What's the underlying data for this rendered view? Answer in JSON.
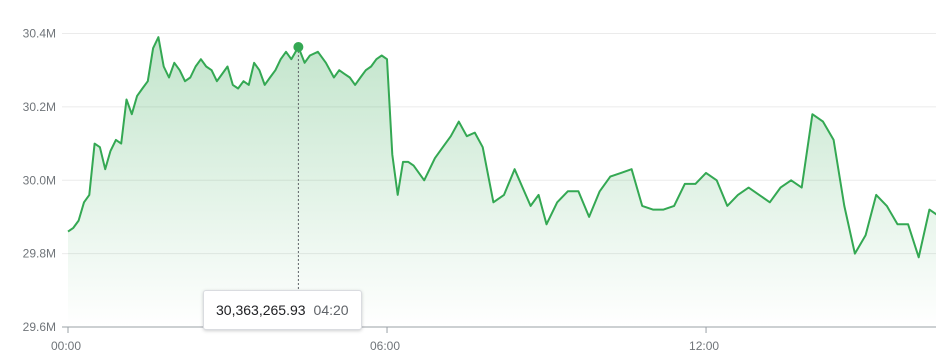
{
  "chart_data": {
    "type": "area",
    "title": "",
    "xlabel": "",
    "ylabel": "",
    "x_ticks": [
      "00:00",
      "06:00",
      "12:00"
    ],
    "y_ticks": [
      "29.6M",
      "29.8M",
      "30.0M",
      "30.2M",
      "30.4M"
    ],
    "ylim": [
      29600000,
      30450000
    ],
    "xlim_hours": [
      0,
      16.5
    ],
    "grid": true,
    "colors": {
      "line": "#34a853",
      "fill_top": "#34a853",
      "grid": "#ebebeb"
    },
    "series": [
      {
        "x_hours": [
          0.0,
          0.1,
          0.2,
          0.3,
          0.4,
          0.5,
          0.6,
          0.7,
          0.8,
          0.9,
          1.0,
          1.1,
          1.2,
          1.3,
          1.4,
          1.5,
          1.6,
          1.7,
          1.8,
          1.9,
          2.0,
          2.1,
          2.2,
          2.3,
          2.4,
          2.5,
          2.6,
          2.7,
          2.8,
          2.9,
          3.0,
          3.1,
          3.2,
          3.3,
          3.4,
          3.5,
          3.6,
          3.7,
          3.8,
          3.9,
          4.0,
          4.1,
          4.2,
          4.333,
          4.45,
          4.55,
          4.7,
          4.85,
          5.0,
          5.1,
          5.2,
          5.3,
          5.4,
          5.5,
          5.6,
          5.7,
          5.8,
          5.9,
          6.0,
          6.1,
          6.2,
          6.3,
          6.4,
          6.5,
          6.7,
          6.9,
          7.05,
          7.2,
          7.35,
          7.5,
          7.65,
          7.8,
          8.0,
          8.2,
          8.4,
          8.55,
          8.7,
          8.85,
          9.0,
          9.2,
          9.4,
          9.6,
          9.8,
          10.0,
          10.2,
          10.4,
          10.6,
          10.8,
          11.0,
          11.2,
          11.4,
          11.6,
          11.8,
          12.0,
          12.2,
          12.4,
          12.6,
          12.8,
          13.0,
          13.2,
          13.4,
          13.6,
          13.8,
          14.0,
          14.2,
          14.4,
          14.6,
          14.8,
          15.0,
          15.2,
          15.4,
          15.6,
          15.8,
          16.0,
          16.2,
          16.4
        ],
        "values": [
          29860000,
          29870000,
          29890000,
          29940000,
          29960000,
          30100000,
          30090000,
          30030000,
          30080000,
          30110000,
          30100000,
          30220000,
          30180000,
          30230000,
          30250000,
          30270000,
          30360000,
          30390000,
          30310000,
          30280000,
          30320000,
          30300000,
          30270000,
          30280000,
          30310000,
          30330000,
          30310000,
          30300000,
          30270000,
          30290000,
          30310000,
          30260000,
          30250000,
          30270000,
          30260000,
          30320000,
          30300000,
          30260000,
          30280000,
          30300000,
          30330000,
          30350000,
          30330000,
          30363265.93,
          30320000,
          30340000,
          30350000,
          30320000,
          30280000,
          30300000,
          30290000,
          30280000,
          30260000,
          30280000,
          30300000,
          30310000,
          30330000,
          30340000,
          30330000,
          30070000,
          29960000,
          30050000,
          30050000,
          30040000,
          30000000,
          30060000,
          30090000,
          30120000,
          30160000,
          30120000,
          30130000,
          30090000,
          29940000,
          29960000,
          30030000,
          29980000,
          29930000,
          29960000,
          29880000,
          29940000,
          29970000,
          29970000,
          29900000,
          29970000,
          30010000,
          30020000,
          30030000,
          29930000,
          29920000,
          29920000,
          29930000,
          29990000,
          29990000,
          30020000,
          30000000,
          29930000,
          29960000,
          29980000,
          29960000,
          29940000,
          29980000,
          30000000,
          29980000,
          30180000,
          30160000,
          30110000,
          29930000,
          29800000,
          29850000,
          29960000,
          29930000,
          29880000,
          29880000,
          29790000,
          29920000,
          29900000
        ]
      }
    ],
    "tooltip": {
      "value": "30,363,265.93",
      "time": "04:20",
      "x_hours": 4.333,
      "value_num": 30363265.93
    }
  }
}
